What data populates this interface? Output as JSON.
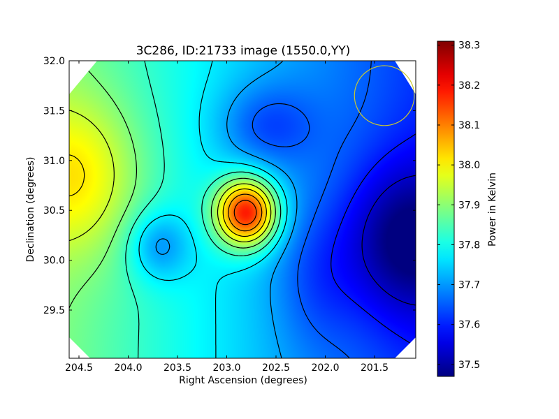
{
  "chart_data": {
    "type": "heatmap",
    "title": "3C286, ID:21733 image (1550.0,YY)",
    "xlabel": "Right Ascension (degrees)",
    "ylabel": "Declination (degrees)",
    "colorbar_label": "Power in Kelvin",
    "colormap": "jet",
    "xlim": [
      204.55,
      201.05
    ],
    "ylim": [
      29.5,
      32.0
    ],
    "x_ticks": [
      204.5,
      204.0,
      203.5,
      203.0,
      202.5,
      202.0,
      201.5
    ],
    "x_tick_labels": [
      "204.5",
      "204.0",
      "203.5",
      "203.0",
      "202.5",
      "202.0",
      "201.5"
    ],
    "y_ticks": [
      29.5,
      30.0,
      30.5,
      31.0,
      31.5,
      32.0
    ],
    "y_tick_labels": [
      "29.5",
      "30.0",
      "30.5",
      "31.0",
      "31.5",
      "32.0"
    ],
    "colorbar_range": [
      37.47,
      38.31
    ],
    "colorbar_ticks": [
      37.5,
      37.6,
      37.7,
      37.8,
      37.9,
      38.0,
      38.1,
      38.2,
      38.3
    ],
    "colorbar_tick_labels": [
      "37.5",
      "37.6",
      "37.7",
      "37.8",
      "37.9",
      "38.0",
      "38.1",
      "38.2",
      "38.3"
    ],
    "contour_levels": [
      37.53,
      37.59,
      37.65,
      37.71,
      37.77,
      37.83,
      37.89,
      37.95,
      38.01,
      38.07,
      38.13,
      38.19,
      38.25
    ],
    "peak": {
      "ra": 202.8,
      "dec": 30.48,
      "value": 38.3
    },
    "secondary_min": {
      "ra": 203.7,
      "dec": 30.15,
      "value": 37.74
    },
    "minimum": {
      "ra": 201.2,
      "dec": 30.2,
      "value": 37.48
    },
    "left_plateau": {
      "ra": 204.5,
      "dec": 30.85,
      "value": 38.0
    },
    "beam_circle": {
      "ra": 201.4,
      "dec": 31.65,
      "radius_deg": 0.3,
      "color": "#c8c832"
    }
  }
}
